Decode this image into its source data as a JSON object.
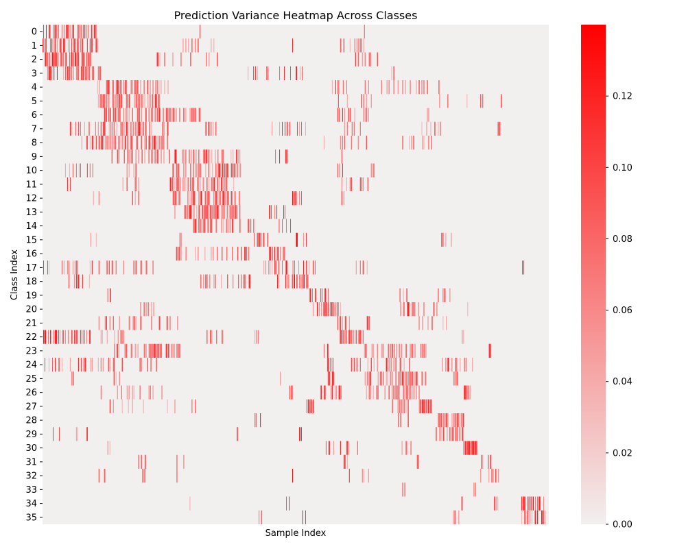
{
  "chart_data": {
    "type": "heatmap",
    "title": "Prediction Variance Heatmap Across Classes",
    "xlabel": "Sample Index",
    "ylabel": "Class Index",
    "y_categories": [
      "0",
      "1",
      "2",
      "3",
      "4",
      "5",
      "6",
      "7",
      "8",
      "9",
      "10",
      "11",
      "12",
      "13",
      "14",
      "15",
      "16",
      "17",
      "18",
      "19",
      "20",
      "21",
      "22",
      "23",
      "24",
      "25",
      "26",
      "27",
      "28",
      "29",
      "30",
      "31",
      "32",
      "33",
      "34",
      "35"
    ],
    "x_tick_labels": [],
    "colorbar": {
      "vmin": 0.0,
      "vmax": 0.14,
      "ticks": [
        0.0,
        0.02,
        0.04,
        0.06,
        0.08,
        0.1,
        0.12
      ],
      "tick_labels": [
        "0.00",
        "0.02",
        "0.04",
        "0.06",
        "0.08",
        "0.10",
        "0.12"
      ],
      "color_low": "#f2efef",
      "color_high": "#ff0000"
    },
    "samples_estimated": 740,
    "cells_note": "",
    "bands": [
      {
        "row": 0,
        "from": 0,
        "to": 80,
        "density": 0.45
      },
      {
        "row": 0,
        "from": 225,
        "to": 232,
        "density": 0.4
      },
      {
        "row": 0,
        "from": 465,
        "to": 470,
        "density": 0.4
      },
      {
        "row": 1,
        "from": 0,
        "to": 80,
        "density": 0.45
      },
      {
        "row": 1,
        "from": 195,
        "to": 250,
        "density": 0.12
      },
      {
        "row": 1,
        "from": 355,
        "to": 365,
        "density": 0.3
      },
      {
        "row": 1,
        "from": 430,
        "to": 470,
        "density": 0.15
      },
      {
        "row": 2,
        "from": 0,
        "to": 70,
        "density": 0.5
      },
      {
        "row": 2,
        "from": 165,
        "to": 260,
        "density": 0.12
      },
      {
        "row": 2,
        "from": 440,
        "to": 490,
        "density": 0.2
      },
      {
        "row": 3,
        "from": 0,
        "to": 85,
        "density": 0.45
      },
      {
        "row": 3,
        "from": 300,
        "to": 380,
        "density": 0.15
      },
      {
        "row": 3,
        "from": 505,
        "to": 515,
        "density": 0.2
      },
      {
        "row": 4,
        "from": 80,
        "to": 185,
        "density": 0.45
      },
      {
        "row": 4,
        "from": 420,
        "to": 590,
        "density": 0.12
      },
      {
        "row": 5,
        "from": 80,
        "to": 170,
        "density": 0.45
      },
      {
        "row": 5,
        "from": 430,
        "to": 480,
        "density": 0.2
      },
      {
        "row": 5,
        "from": 580,
        "to": 670,
        "density": 0.1
      },
      {
        "row": 6,
        "from": 90,
        "to": 230,
        "density": 0.35
      },
      {
        "row": 6,
        "from": 430,
        "to": 480,
        "density": 0.15
      },
      {
        "row": 6,
        "from": 560,
        "to": 570,
        "density": 0.3
      },
      {
        "row": 7,
        "from": 40,
        "to": 185,
        "density": 0.35
      },
      {
        "row": 7,
        "from": 235,
        "to": 255,
        "density": 0.2
      },
      {
        "row": 7,
        "from": 335,
        "to": 385,
        "density": 0.25
      },
      {
        "row": 7,
        "from": 440,
        "to": 470,
        "density": 0.2
      },
      {
        "row": 7,
        "from": 550,
        "to": 590,
        "density": 0.15
      },
      {
        "row": 7,
        "from": 665,
        "to": 670,
        "density": 0.3
      },
      {
        "row": 8,
        "from": 55,
        "to": 185,
        "density": 0.45
      },
      {
        "row": 8,
        "from": 410,
        "to": 490,
        "density": 0.15
      },
      {
        "row": 8,
        "from": 520,
        "to": 570,
        "density": 0.15
      },
      {
        "row": 9,
        "from": 100,
        "to": 290,
        "density": 0.3
      },
      {
        "row": 9,
        "from": 325,
        "to": 365,
        "density": 0.2
      },
      {
        "row": 9,
        "from": 430,
        "to": 445,
        "density": 0.2
      },
      {
        "row": 10,
        "from": 25,
        "to": 140,
        "density": 0.08
      },
      {
        "row": 10,
        "from": 190,
        "to": 290,
        "density": 0.4
      },
      {
        "row": 10,
        "from": 430,
        "to": 440,
        "density": 0.3
      },
      {
        "row": 10,
        "from": 480,
        "to": 485,
        "density": 0.4
      },
      {
        "row": 11,
        "from": 35,
        "to": 40,
        "density": 0.4
      },
      {
        "row": 11,
        "from": 110,
        "to": 145,
        "density": 0.15
      },
      {
        "row": 11,
        "from": 185,
        "to": 280,
        "density": 0.45
      },
      {
        "row": 11,
        "from": 435,
        "to": 475,
        "density": 0.2
      },
      {
        "row": 12,
        "from": 70,
        "to": 145,
        "density": 0.1
      },
      {
        "row": 12,
        "from": 190,
        "to": 290,
        "density": 0.45
      },
      {
        "row": 12,
        "from": 365,
        "to": 380,
        "density": 0.35
      },
      {
        "row": 12,
        "from": 435,
        "to": 445,
        "density": 0.25
      },
      {
        "row": 13,
        "from": 190,
        "to": 290,
        "density": 0.45
      },
      {
        "row": 13,
        "from": 330,
        "to": 360,
        "density": 0.15
      },
      {
        "row": 14,
        "from": 220,
        "to": 310,
        "density": 0.25
      },
      {
        "row": 14,
        "from": 330,
        "to": 365,
        "density": 0.15
      },
      {
        "row": 15,
        "from": 60,
        "to": 80,
        "density": 0.2
      },
      {
        "row": 15,
        "from": 200,
        "to": 205,
        "density": 0.4
      },
      {
        "row": 15,
        "from": 305,
        "to": 330,
        "density": 0.45
      },
      {
        "row": 15,
        "from": 370,
        "to": 385,
        "density": 0.3
      },
      {
        "row": 15,
        "from": 580,
        "to": 605,
        "density": 0.2
      },
      {
        "row": 16,
        "from": 195,
        "to": 305,
        "density": 0.15
      },
      {
        "row": 16,
        "from": 330,
        "to": 355,
        "density": 0.5
      },
      {
        "row": 17,
        "from": 0,
        "to": 165,
        "density": 0.15
      },
      {
        "row": 17,
        "from": 320,
        "to": 400,
        "density": 0.4
      },
      {
        "row": 17,
        "from": 450,
        "to": 480,
        "density": 0.2
      },
      {
        "row": 17,
        "from": 700,
        "to": 705,
        "density": 0.4
      },
      {
        "row": 18,
        "from": 30,
        "to": 70,
        "density": 0.15
      },
      {
        "row": 18,
        "from": 230,
        "to": 310,
        "density": 0.15
      },
      {
        "row": 18,
        "from": 340,
        "to": 390,
        "density": 0.45
      },
      {
        "row": 19,
        "from": 95,
        "to": 100,
        "density": 0.4
      },
      {
        "row": 19,
        "from": 390,
        "to": 420,
        "density": 0.5
      },
      {
        "row": 19,
        "from": 520,
        "to": 535,
        "density": 0.25
      },
      {
        "row": 19,
        "from": 575,
        "to": 595,
        "density": 0.15
      },
      {
        "row": 20,
        "from": 135,
        "to": 165,
        "density": 0.15
      },
      {
        "row": 20,
        "from": 395,
        "to": 435,
        "density": 0.5
      },
      {
        "row": 20,
        "from": 520,
        "to": 580,
        "density": 0.2
      },
      {
        "row": 20,
        "from": 620,
        "to": 630,
        "density": 0.3
      },
      {
        "row": 21,
        "from": 80,
        "to": 200,
        "density": 0.15
      },
      {
        "row": 21,
        "from": 430,
        "to": 450,
        "density": 0.6
      },
      {
        "row": 21,
        "from": 470,
        "to": 480,
        "density": 0.2
      },
      {
        "row": 21,
        "from": 550,
        "to": 590,
        "density": 0.15
      },
      {
        "row": 22,
        "from": 0,
        "to": 70,
        "density": 0.4
      },
      {
        "row": 22,
        "from": 85,
        "to": 120,
        "density": 0.2
      },
      {
        "row": 22,
        "from": 240,
        "to": 265,
        "density": 0.2
      },
      {
        "row": 22,
        "from": 310,
        "to": 315,
        "density": 0.4
      },
      {
        "row": 22,
        "from": 430,
        "to": 470,
        "density": 0.45
      },
      {
        "row": 22,
        "from": 610,
        "to": 615,
        "density": 0.3
      },
      {
        "row": 23,
        "from": 100,
        "to": 200,
        "density": 0.4
      },
      {
        "row": 23,
        "from": 410,
        "to": 420,
        "density": 0.3
      },
      {
        "row": 23,
        "from": 470,
        "to": 560,
        "density": 0.4
      },
      {
        "row": 23,
        "from": 650,
        "to": 655,
        "density": 0.3
      },
      {
        "row": 24,
        "from": 0,
        "to": 170,
        "density": 0.1
      },
      {
        "row": 24,
        "from": 415,
        "to": 425,
        "density": 0.4
      },
      {
        "row": 24,
        "from": 450,
        "to": 540,
        "density": 0.25
      },
      {
        "row": 24,
        "from": 580,
        "to": 630,
        "density": 0.2
      },
      {
        "row": 25,
        "from": 40,
        "to": 45,
        "density": 0.4
      },
      {
        "row": 25,
        "from": 100,
        "to": 120,
        "density": 0.2
      },
      {
        "row": 25,
        "from": 345,
        "to": 350,
        "density": 0.4
      },
      {
        "row": 25,
        "from": 390,
        "to": 430,
        "density": 0.2
      },
      {
        "row": 25,
        "from": 470,
        "to": 560,
        "density": 0.45
      },
      {
        "row": 25,
        "from": 600,
        "to": 610,
        "density": 0.3
      },
      {
        "row": 26,
        "from": 80,
        "to": 175,
        "density": 0.1
      },
      {
        "row": 26,
        "from": 360,
        "to": 365,
        "density": 0.4
      },
      {
        "row": 26,
        "from": 405,
        "to": 440,
        "density": 0.4
      },
      {
        "row": 26,
        "from": 470,
        "to": 490,
        "density": 0.3
      },
      {
        "row": 26,
        "from": 500,
        "to": 550,
        "density": 0.5
      },
      {
        "row": 26,
        "from": 615,
        "to": 625,
        "density": 0.6
      },
      {
        "row": 27,
        "from": 90,
        "to": 230,
        "density": 0.12
      },
      {
        "row": 27,
        "from": 380,
        "to": 395,
        "density": 0.3
      },
      {
        "row": 27,
        "from": 510,
        "to": 535,
        "density": 0.3
      },
      {
        "row": 27,
        "from": 550,
        "to": 570,
        "density": 0.7
      },
      {
        "row": 28,
        "from": 310,
        "to": 320,
        "density": 0.3
      },
      {
        "row": 28,
        "from": 520,
        "to": 545,
        "density": 0.2
      },
      {
        "row": 28,
        "from": 575,
        "to": 615,
        "density": 0.5
      },
      {
        "row": 29,
        "from": 5,
        "to": 80,
        "density": 0.1
      },
      {
        "row": 29,
        "from": 280,
        "to": 285,
        "density": 0.4
      },
      {
        "row": 29,
        "from": 375,
        "to": 380,
        "density": 0.3
      },
      {
        "row": 29,
        "from": 575,
        "to": 615,
        "density": 0.4
      },
      {
        "row": 29,
        "from": 730,
        "to": 735,
        "density": 0.3
      },
      {
        "row": 30,
        "from": 95,
        "to": 100,
        "density": 0.4
      },
      {
        "row": 30,
        "from": 410,
        "to": 480,
        "density": 0.15
      },
      {
        "row": 30,
        "from": 520,
        "to": 550,
        "density": 0.3
      },
      {
        "row": 30,
        "from": 615,
        "to": 635,
        "density": 0.85
      },
      {
        "row": 31,
        "from": 140,
        "to": 150,
        "density": 0.3
      },
      {
        "row": 31,
        "from": 185,
        "to": 210,
        "density": 0.15
      },
      {
        "row": 31,
        "from": 440,
        "to": 445,
        "density": 0.4
      },
      {
        "row": 31,
        "from": 545,
        "to": 550,
        "density": 0.4
      },
      {
        "row": 31,
        "from": 640,
        "to": 655,
        "density": 0.4
      },
      {
        "row": 32,
        "from": 80,
        "to": 95,
        "density": 0.2
      },
      {
        "row": 32,
        "from": 145,
        "to": 150,
        "density": 0.4
      },
      {
        "row": 32,
        "from": 195,
        "to": 200,
        "density": 0.4
      },
      {
        "row": 32,
        "from": 365,
        "to": 370,
        "density": 0.3
      },
      {
        "row": 32,
        "from": 440,
        "to": 480,
        "density": 0.15
      },
      {
        "row": 32,
        "from": 640,
        "to": 670,
        "density": 0.3
      },
      {
        "row": 33,
        "from": 525,
        "to": 530,
        "density": 0.3
      },
      {
        "row": 33,
        "from": 630,
        "to": 635,
        "density": 0.5
      },
      {
        "row": 34,
        "from": 215,
        "to": 220,
        "density": 0.4
      },
      {
        "row": 34,
        "from": 355,
        "to": 360,
        "density": 0.4
      },
      {
        "row": 34,
        "from": 610,
        "to": 615,
        "density": 0.4
      },
      {
        "row": 34,
        "from": 660,
        "to": 665,
        "density": 0.4
      },
      {
        "row": 34,
        "from": 695,
        "to": 735,
        "density": 0.6
      },
      {
        "row": 35,
        "from": 315,
        "to": 320,
        "density": 0.2
      },
      {
        "row": 35,
        "from": 380,
        "to": 385,
        "density": 0.3
      },
      {
        "row": 35,
        "from": 600,
        "to": 610,
        "density": 0.3
      },
      {
        "row": 35,
        "from": 700,
        "to": 735,
        "density": 0.5
      }
    ]
  }
}
